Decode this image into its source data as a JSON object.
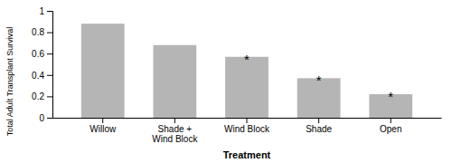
{
  "chart_data": {
    "type": "bar",
    "categories": [
      "Willow",
      "Shade +\nWind Block",
      "Wind Block",
      "Shade",
      "Open"
    ],
    "values": [
      0.88,
      0.68,
      0.57,
      0.37,
      0.22
    ],
    "color": "#b5b5b5",
    "xlabel": "Treatment",
    "ylabel": "Total Adult Transplant Survival",
    "ylim": [
      0,
      1
    ],
    "yticks": [
      0,
      0.2,
      0.4,
      0.6,
      0.8,
      1
    ],
    "grid": false,
    "annotations": [
      {
        "text": "*",
        "category": "Wind Block"
      },
      {
        "text": "*",
        "category": "Shade"
      },
      {
        "text": "*",
        "category": "Open"
      }
    ]
  }
}
